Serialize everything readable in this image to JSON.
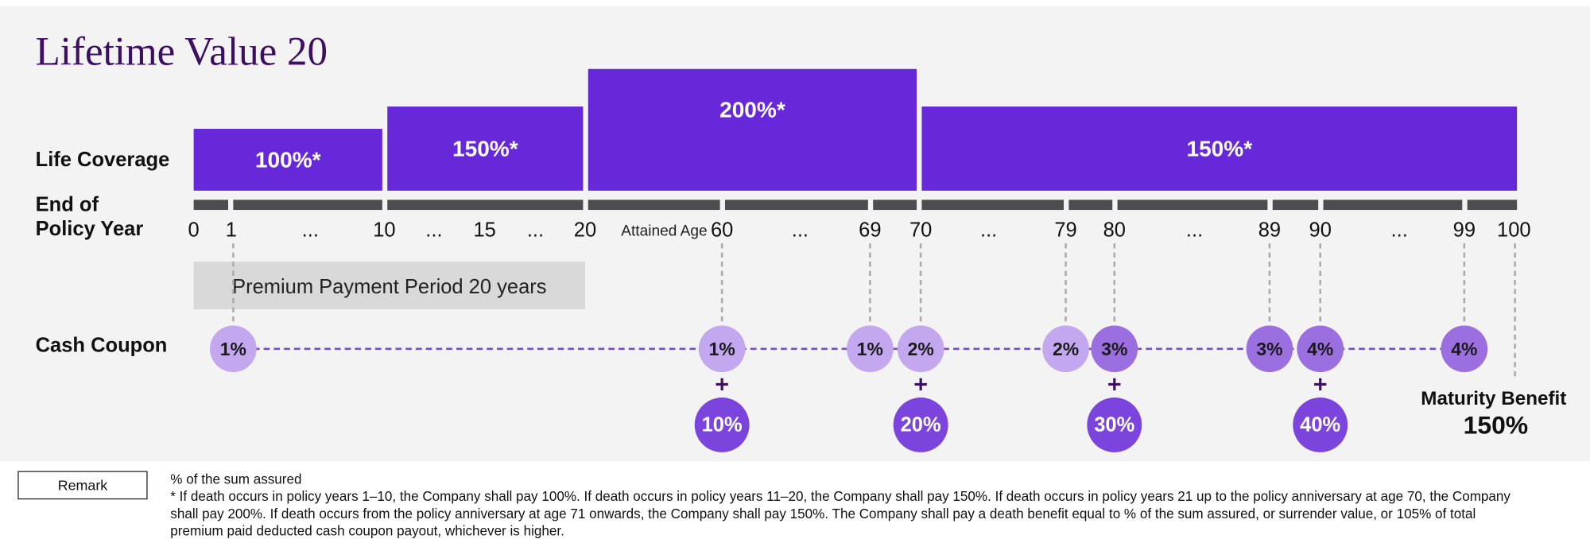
{
  "title": "Lifetime Value 20",
  "row_labels": {
    "life_coverage": "Life Coverage",
    "policy_year": [
      "End of",
      "Policy Year"
    ],
    "cash_coupon": "Cash Coupon"
  },
  "coverage_bars": [
    "100%*",
    "150%*",
    "200%*",
    "150%*"
  ],
  "year_labels": [
    "0",
    "1",
    "...",
    "10",
    "...",
    "15",
    "...",
    "20",
    "60",
    "...",
    "69",
    "70",
    "...",
    "79",
    "80",
    "...",
    "89",
    "90",
    "...",
    "99",
    "100"
  ],
  "attained_age": "Attained Age",
  "premium_period": "Premium Payment Period 20 years",
  "coupons": [
    "1%",
    "1%",
    "1%",
    "2%",
    "2%",
    "3%",
    "3%",
    "4%",
    "4%"
  ],
  "bonuses": [
    "10%",
    "20%",
    "30%",
    "40%"
  ],
  "maturity_benefit": {
    "label": "Maturity Benefit",
    "value": "150%"
  },
  "remark": {
    "button": "Remark",
    "lines": [
      "% of the sum assured",
      "* If death occurs in policy years 1–10, the Company shall pay 100%. If death occurs in policy years 11–20, the Company shall pay 150%. If death occurs in policy years 21 up to the policy anniversary at age 70, the Company",
      "shall pay 200%. If death occurs from the policy anniversary at age 71 onwards, the Company shall pay 150%. The Company shall pay a death benefit equal to % of the sum assured, or surrender value, or 105% of total",
      "premium paid deducted cash coupon payout, whichever is higher."
    ]
  }
}
